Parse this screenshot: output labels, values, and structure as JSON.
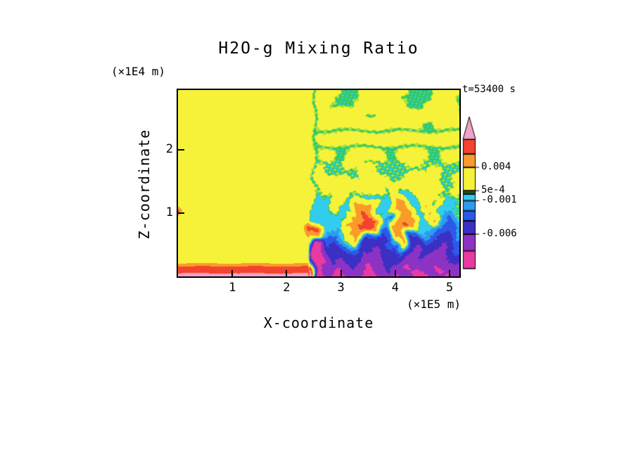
{
  "title": "H2O-g Mixing Ratio",
  "time_label": "t=53400 s",
  "axes": {
    "x_label": "X-coordinate",
    "x_unit": "(×1E5 m)",
    "x_ticks": [
      1,
      2,
      3,
      4,
      5
    ],
    "z_label": "Z-coordinate",
    "z_unit": "(×1E4 m)",
    "z_ticks": [
      1,
      2
    ]
  },
  "colors": {
    "background": "#ffffff",
    "text": "#000000",
    "frame": "#000000"
  },
  "chart_data": {
    "type": "heatmap",
    "title": "H2O-g Mixing Ratio",
    "xlabel": "X-coordinate (×1E5 m)",
    "ylabel": "Z-coordinate (×1E4 m)",
    "time_s": 53400,
    "x_range_1e5_m": [
      0,
      5.18
    ],
    "z_range_1e4_m": [
      0,
      2.94
    ],
    "levels": [
      -0.0085,
      -0.006,
      -0.004,
      -0.0025,
      -0.001,
      0.0,
      0.00025,
      0.0005,
      0.004,
      0.006,
      0.0085
    ],
    "colors": [
      "#e93aa2",
      "#8d33c4",
      "#3c2fc4",
      "#2b5ae8",
      "#2f9bf0",
      "#32cdee",
      "#2fc96a",
      "#a8e03c",
      "#f6f23a",
      "#f99b2b",
      "#f4432e",
      "#f0a2c8"
    ],
    "colorbar_labels": [
      {
        "value": 0.004,
        "text": "0.004"
      },
      {
        "value": 0.0005,
        "text": "5e-4"
      },
      {
        "value": -0.001,
        "text": "-0.001"
      },
      {
        "value": -0.006,
        "text": "-0.006"
      }
    ],
    "value_codes": {
      "Y": 0.0018,
      "G": 0.0001,
      "C": -0.0006,
      "B": -0.0032,
      "N": -0.0052,
      "P": -0.0072,
      "M": -0.0095,
      "O": 0.0048,
      "R": 0.007,
      "K": 0.0093
    },
    "grid_rows_top_to_bottom": [
      "YYYYYYYYYYYYYYYYYYYGYYYGGGYYYYYYGGGGYYYY",
      "YYYYYYYYYYYYYYYYYYYGYYGGGGYYYYYGGGGGYYYG",
      "YYYYYYYYYYYYYYYYYYYGYGGGGYYYYYYYGGGYYYYG",
      "YYYYYYYYYYYYYYYYYYYGYYYYYYGGYYYYYYYYYYYG",
      "YYYYYYYYYYYYYYYYYYYGYYYYYYYYYYYYYYGGYYYY",
      "YYYYYYYYYYYYYYYYYYYGGGGGGGGGGGGGGGGGGGGG",
      "YYYYYYYYYYYYYYYYYYYGYYYYYYYYYYYYYYYYYYYY",
      "YYYYYYYYYYYYYYYYYYYGGGGGGGGGGGGGGGGGGGGG",
      "YYYYYYYYYYYYYYYYYYYGYYGGYYYYYGGYYYYGGYYY",
      "YYYYYYYYYYYYYYYYYYYGGGGGYYGGGGGGYYGGGGGG",
      "YYYYYYYYYYYYYYYYYYYGYGGGGGYYGGGGGGGYYGGG",
      "YYYYYYYYYYYYYYYYYYYGYYYYGGYYYYGGYYYYYGGY",
      "YYYYYYYYYYYYYYYYYYYGYYYYYYYYYGYYYYYYYGGY",
      "YYYYYYYYYYYYYYYYYYYCGGYYGGCCGGYCCGYYGGYG",
      "YYYYYYYYYYYYYYYYYYYCCCYYCOOOCCOOCCOCYCCG",
      "RYYYYYYYYYYYYYYYYYYCCCYCCOROCCOOOCCOCCCG",
      "YYYYYYYYYYYYYYYYYYYCCCCCOORROCBOOOCCOCBG",
      "YYYYYYYYYYYYYYYYYYRRCCCOORROBBOOROCCBBBG",
      "YYYYYYYYYYYYYYYYYYOOCBBCOOBBNBOOBBCBNNBG",
      "YYYYYYYYYYYYYYYYYYYMMBNBCONNNBBONNBNNPNB",
      "YYYYYYYYYYYYYYYYYYYMMNNNBBNNPNNBNPNNPPNB",
      "YYYYYYYYYYYYYYYYYYYMMNPNNNPPPNNNPPNPPPNN",
      "RRRRRRRRRRRRRRRRRRRMPPMPNPMPPNPPMPPPMPPP",
      "KKKKKKKKKKKKKKKKKKKMMPMMPPMMPPMPPMMPPMPP"
    ]
  }
}
